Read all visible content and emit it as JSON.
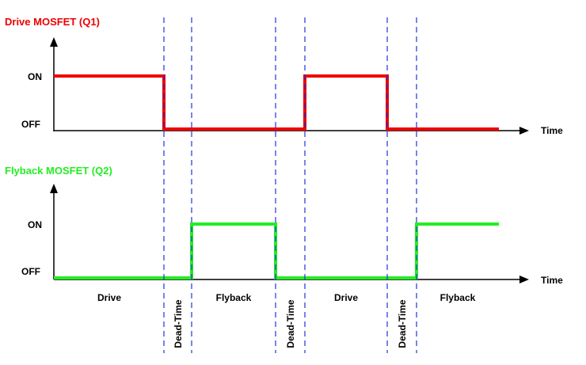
{
  "colors": {
    "drive": "#ee0000",
    "flyback": "#22ee22",
    "axis": "#000000",
    "divider": "#2233dd"
  },
  "top": {
    "title": "Drive MOSFET (Q1)",
    "on_label": "ON",
    "off_label": "OFF",
    "time_label": "Time"
  },
  "bottom": {
    "title": "Flyback MOSFET (Q2)",
    "on_label": "ON",
    "off_label": "OFF",
    "time_label": "Time"
  },
  "phases": [
    "Drive",
    "Dead-Time",
    "Flyback",
    "Dead-Time",
    "Drive",
    "Dead-Time",
    "Flyback"
  ]
}
